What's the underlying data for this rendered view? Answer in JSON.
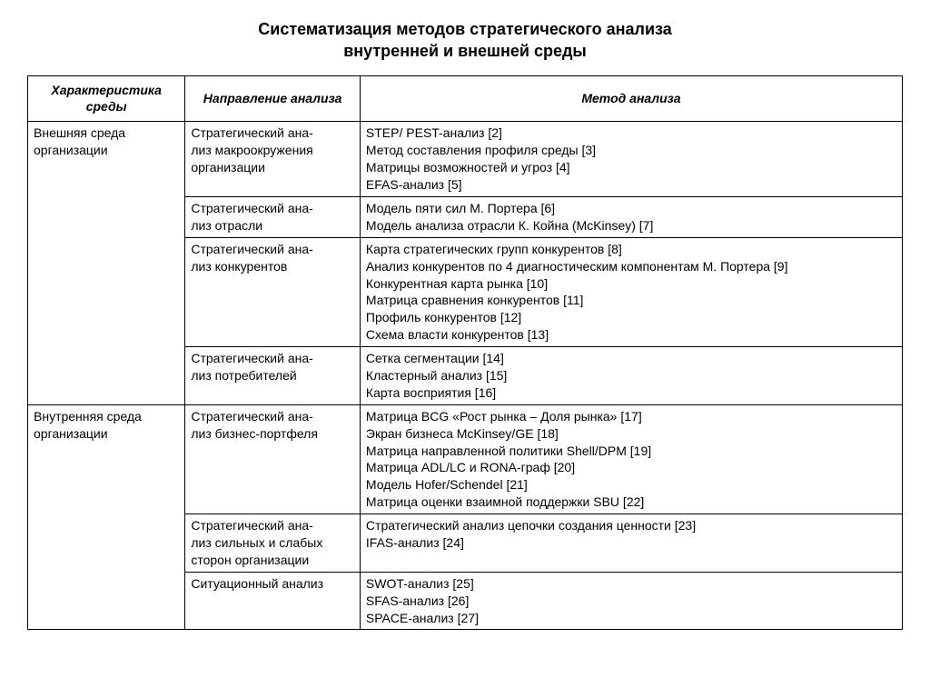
{
  "title_line1": "Систематизация методов стратегического анализа",
  "title_line2": "внутренней и внешней среды",
  "columns": {
    "c1": "Характеристика среды",
    "c2": "Направление анализа",
    "c3": "Метод анализа"
  },
  "sections": [
    {
      "env": "Внешняя среда организации",
      "groups": [
        {
          "direction": "Стратегический ана-\nлиз макроокружения организации",
          "methods": [
            "STEP/ PEST-анализ [2]",
            "Метод составления профиля среды [3]",
            "Матрицы возможностей и угроз [4]",
            "EFAS-анализ [5]"
          ]
        },
        {
          "direction": "Стратегический ана-\nлиз отрасли",
          "methods": [
            "Модель пяти сил М. Портера [6]",
            "Модель анализа отрасли К. Койна (McKinsey) [7]"
          ]
        },
        {
          "direction": "Стратегический ана-\nлиз конкурентов",
          "methods": [
            "Карта стратегических групп конкурентов [8]",
            "Анализ конкурентов по 4 диагностическим компонентам М. Портера [9]",
            "Конкурентная карта рынка [10]",
            "Матрица сравнения конкурентов [11]",
            "Профиль конкурентов [12]",
            "Схема власти конкурентов [13]"
          ]
        },
        {
          "direction": "Стратегический ана-\nлиз потребителей",
          "methods": [
            "Сетка сегментации [14]",
            "Кластерный анализ [15]",
            "Карта восприятия [16]"
          ]
        }
      ]
    },
    {
      "env": "Внутренняя среда организации",
      "groups": [
        {
          "direction": "Стратегический ана-\nлиз бизнес-портфеля",
          "methods": [
            "Матрица BCG «Рост рынка – Доля рынка» [17]",
            "Экран бизнеса McKinsey/GE [18]",
            "Матрица направленной политики Shell/DPM [19]",
            "Матрица ADL/LC и RONA-граф [20]",
            "Модель Hofer/Schendel [21]",
            "Матрица оценки взаимной поддержки SBU [22]"
          ]
        },
        {
          "direction": "Стратегический ана-\nлиз сильных и слабых сторон организации",
          "methods": [
            "Стратегический анализ цепочки создания ценности [23]",
            "IFAS-анализ [24]"
          ]
        },
        {
          "direction": "Ситуационный анализ",
          "methods": [
            "SWOT-анализ [25]",
            "SFAS-анализ [26]",
            "SPACE-анализ [27]"
          ]
        }
      ]
    }
  ]
}
